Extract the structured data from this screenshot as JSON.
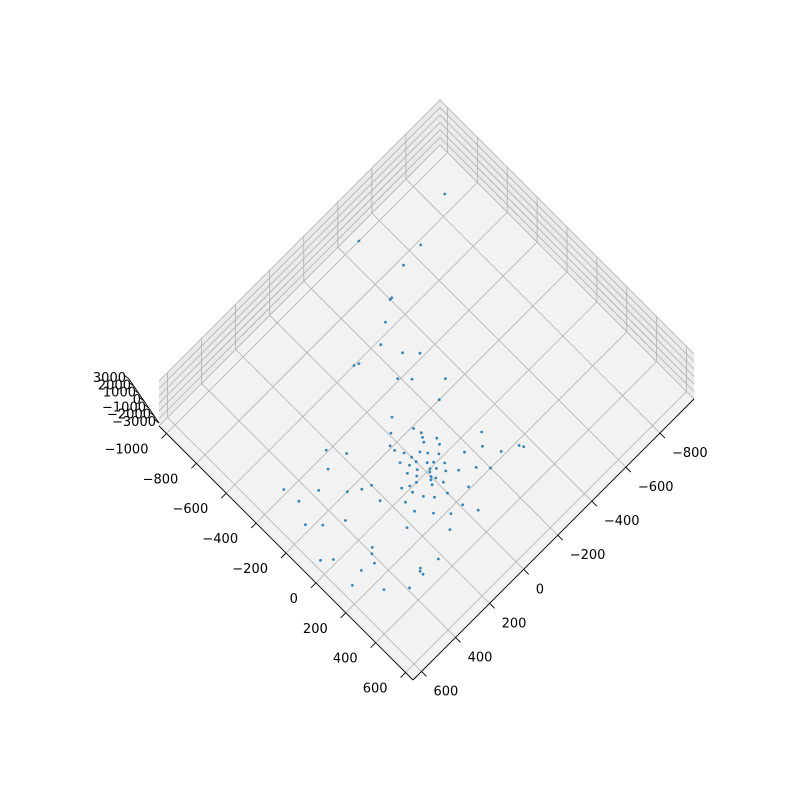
{
  "chart_data": {
    "type": "scatter3d",
    "title": "",
    "xlabel": "",
    "ylabel": "",
    "zlabel": "",
    "x_ticks": [
      "−1000",
      "−800",
      "−600",
      "−400",
      "−200",
      "0",
      "200",
      "400",
      "600"
    ],
    "y_ticks": [
      "−800",
      "−600",
      "−400",
      "−200",
      "0",
      "200",
      "400",
      "600"
    ],
    "z_ticks": [
      "3000",
      "2000",
      "1000",
      "0",
      "−1000",
      "−2000",
      "−3000"
    ],
    "xlim": [
      -1050,
      650
    ],
    "ylim": [
      -1000,
      650
    ],
    "zlim": [
      -3000,
      3000
    ],
    "grid": true,
    "marker_color": "#1f77b4",
    "pane_color": "#f2f2f2",
    "grid_color": "#b0b0b0",
    "series": [
      {
        "points": [
          [
            -1000,
            -480,
            0
          ],
          [
            -870,
            -870,
            0
          ],
          [
            -780,
            -650,
            0
          ],
          [
            -770,
            -540,
            0
          ],
          [
            -700,
            -400,
            0
          ],
          [
            -700,
            -410,
            0
          ],
          [
            -640,
            -320,
            0
          ],
          [
            -580,
            -240,
            0
          ],
          [
            -600,
            -100,
            0
          ],
          [
            -590,
            -120,
            0
          ],
          [
            -420,
            -330,
            0
          ],
          [
            -480,
            -280,
            0
          ],
          [
            -410,
            -190,
            0
          ],
          [
            -360,
            -230,
            0
          ],
          [
            -300,
            -60,
            0
          ],
          [
            -250,
            -330,
            0
          ],
          [
            -190,
            -90,
            0
          ],
          [
            -150,
            -100,
            0
          ],
          [
            -130,
            -90,
            0
          ],
          [
            -110,
            -80,
            0
          ],
          [
            -80,
            -130,
            0
          ],
          [
            -60,
            -60,
            0
          ],
          [
            -90,
            -40,
            0
          ],
          [
            -50,
            -120,
            0
          ],
          [
            -30,
            -30,
            0
          ],
          [
            -20,
            -90,
            0
          ],
          [
            -10,
            -50,
            0
          ],
          [
            0,
            -20,
            0
          ],
          [
            10,
            -10,
            0
          ],
          [
            20,
            -40,
            0
          ],
          [
            30,
            0,
            0
          ],
          [
            40,
            10,
            0
          ],
          [
            50,
            -10,
            0
          ],
          [
            -40,
            20,
            0
          ],
          [
            -20,
            40,
            0
          ],
          [
            0,
            60,
            0
          ],
          [
            -60,
            60,
            0
          ],
          [
            -80,
            30,
            0
          ],
          [
            -100,
            0,
            0
          ],
          [
            -70,
            0,
            0
          ],
          [
            -120,
            50,
            0
          ],
          [
            -140,
            10,
            0
          ],
          [
            -10,
            90,
            0
          ],
          [
            20,
            100,
            0
          ],
          [
            60,
            20,
            0
          ],
          [
            90,
            -20,
            0
          ],
          [
            100,
            -100,
            0
          ],
          [
            30,
            -80,
            0
          ],
          [
            60,
            -60,
            0
          ],
          [
            -30,
            120,
            0
          ],
          [
            30,
            150,
            0
          ],
          [
            70,
            80,
            0
          ],
          [
            110,
            50,
            0
          ],
          [
            140,
            0,
            0
          ],
          [
            90,
            150,
            0
          ],
          [
            150,
            -160,
            0
          ],
          [
            200,
            -200,
            0
          ],
          [
            60,
            -170,
            0
          ],
          [
            220,
            -350,
            0
          ],
          [
            240,
            -360,
            0
          ],
          [
            50,
            -280,
            0
          ],
          [
            100,
            -240,
            0
          ],
          [
            180,
            -280,
            0
          ],
          [
            190,
            -80,
            0
          ],
          [
            160,
            100,
            0
          ],
          [
            220,
            50,
            0
          ],
          [
            230,
            -10,
            0
          ],
          [
            270,
            100,
            0
          ],
          [
            300,
            -40,
            0
          ],
          [
            120,
            220,
            0
          ],
          [
            -60,
            220,
            0
          ],
          [
            -140,
            200,
            0
          ],
          [
            -200,
            290,
            0
          ],
          [
            -330,
            180,
            0
          ],
          [
            -410,
            230,
            0
          ],
          [
            -340,
            280,
            0
          ],
          [
            -330,
            460,
            0
          ],
          [
            -170,
            460,
            0
          ],
          [
            -110,
            380,
            0
          ],
          [
            -230,
            510,
            0
          ],
          [
            -300,
            370,
            0
          ],
          [
            -420,
            470,
            0
          ],
          [
            70,
            380,
            0
          ],
          [
            130,
            420,
            0
          ],
          [
            90,
            400,
            0
          ],
          [
            110,
            480,
            0
          ],
          [
            -20,
            530,
            0
          ],
          [
            -60,
            570,
            0
          ],
          [
            130,
            550,
            0
          ],
          [
            250,
            470,
            0
          ],
          [
            330,
            310,
            0
          ],
          [
            300,
            300,
            0
          ],
          [
            330,
            220,
            0
          ],
          [
            310,
            310,
            0
          ],
          [
            330,
            390,
            0
          ],
          [
            -210,
            30,
            0
          ],
          [
            -180,
            30,
            0
          ],
          [
            -250,
            -10,
            0
          ],
          [
            -200,
            -250,
            0
          ],
          [
            -160,
            240,
            0
          ]
        ]
      }
    ]
  }
}
